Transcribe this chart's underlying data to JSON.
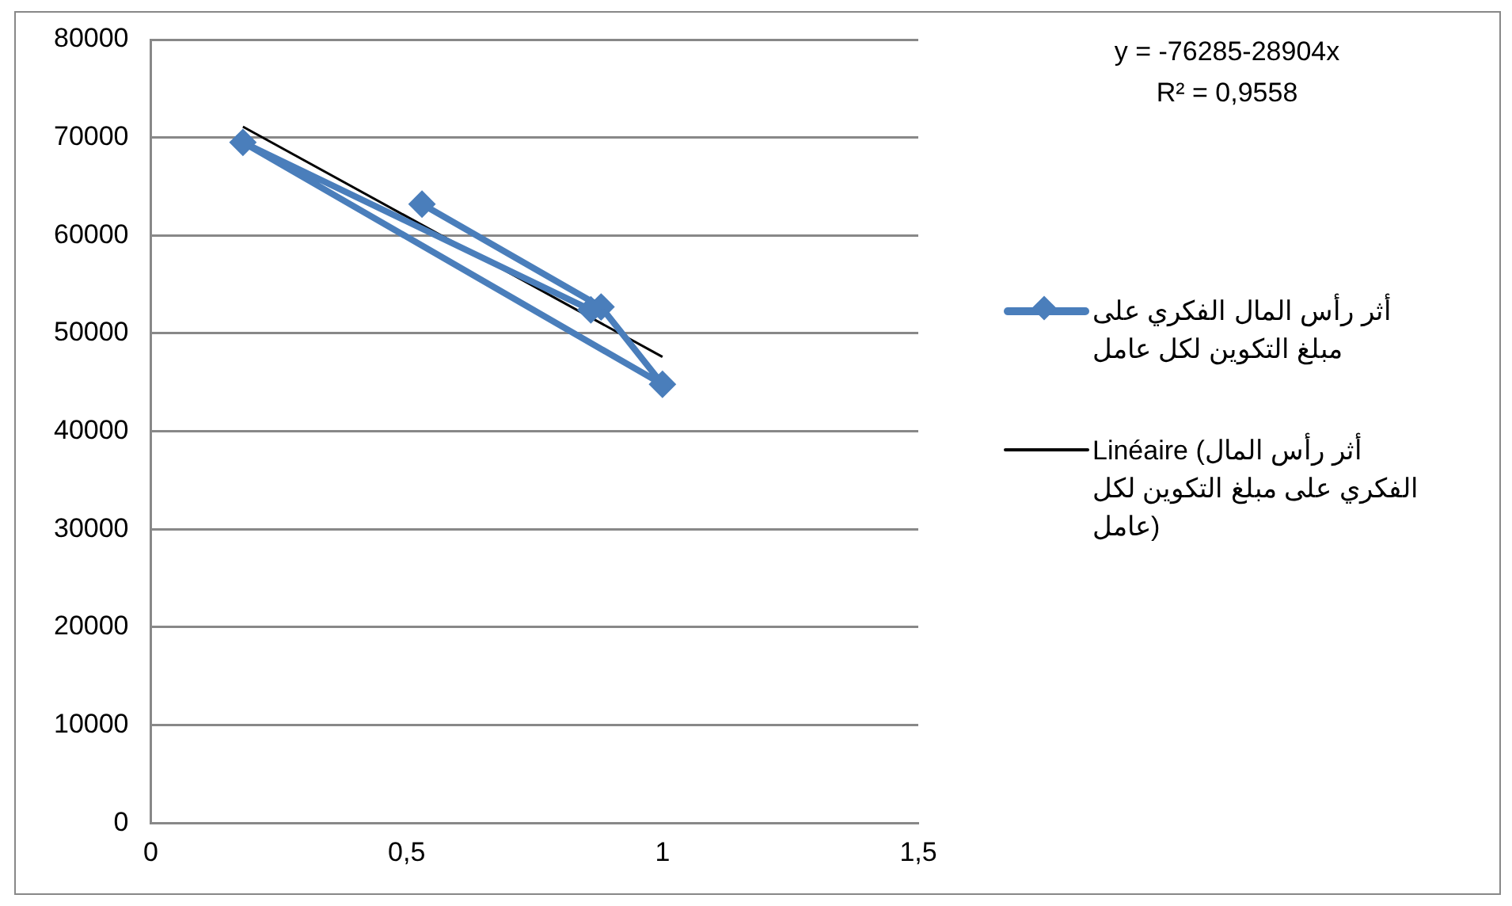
{
  "chart_data": {
    "type": "line",
    "x": [
      0.53,
      0.88,
      1.0,
      0.18,
      0.86
    ],
    "xlim": [
      0,
      1.5
    ],
    "xticks": [
      0,
      {
        "value": 0.5,
        "label": "0,5"
      },
      1,
      {
        "value": 1.5,
        "label": "1,5"
      }
    ],
    "ylim": [
      0,
      80000
    ],
    "yticks": [
      0,
      10000,
      20000,
      30000,
      40000,
      50000,
      60000,
      70000,
      80000
    ],
    "grid": "y",
    "legend": "right",
    "marker": "diamond",
    "series": [
      {
        "name": "أثر رأس المال الفكري على مبلغ التكوين لكل عامل",
        "color": "#4a7ebb",
        "values": [
          63200,
          52700,
          44800,
          69500,
          52400
        ]
      },
      {
        "name": "Linéaire (أثر رأس المال الفكري على مبلغ التكوين لكل عامل)",
        "color": "#000000",
        "type": "line",
        "marker": "none",
        "x": [
          0.18,
          1.0
        ],
        "values": [
          71100,
          47600
        ]
      }
    ],
    "annotations": [
      "y = -76285-28904x\nR² = 0,9558"
    ]
  }
}
